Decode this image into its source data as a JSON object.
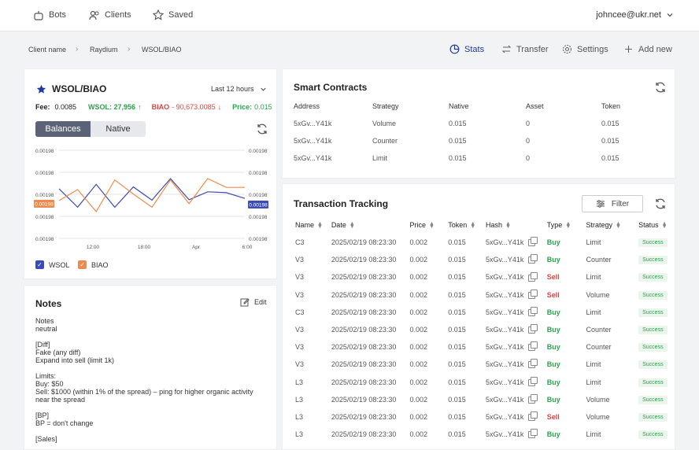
{
  "nav": [
    {
      "label": "Bots",
      "icon": "bot-icon"
    },
    {
      "label": "Clients",
      "icon": "users-icon"
    },
    {
      "label": "Saved",
      "icon": "star-icon"
    }
  ],
  "user": {
    "email": "johncee@ukr.net"
  },
  "breadcrumb": [
    "Client name",
    "Raydium",
    "WSOL/BIAO"
  ],
  "tabs": [
    {
      "label": "Stats",
      "active": true
    },
    {
      "label": "Transfer",
      "active": false
    },
    {
      "label": "Settings",
      "active": false
    },
    {
      "label": "Add new",
      "active": false
    }
  ],
  "pair": {
    "title": "WSOL/BIAO",
    "range": "Last 12 hours",
    "fee_label": "Fee:",
    "fee": "0.0085",
    "wsol": "WSOL: 27,956",
    "biao": "BIAO",
    "biao_value": "- 90,673.0085",
    "price_label": "Price:",
    "price": "0.015",
    "seg": [
      "Balances",
      "Native"
    ]
  },
  "chart_data": {
    "type": "line",
    "x_ticks": [
      "12:00",
      "18:00",
      "Apr",
      "6:00"
    ],
    "left_ticks": [
      "0.00198",
      "0.00198",
      "0.00198",
      "0.00198",
      "0.00198",
      "0.00198"
    ],
    "right_ticks": [
      "0.00198",
      "0.00198",
      "0.00198",
      "0.00198",
      "0.00198",
      "0.00198"
    ],
    "left_marker": "0.00198",
    "right_marker": "0.00198",
    "series": [
      {
        "name": "WSOL",
        "color": "#3b4bb8",
        "values": [
          0.52,
          0.1,
          0.62,
          0.1,
          0.56,
          0.26,
          0.75,
          0.27,
          0.45,
          0.43,
          0.3
        ]
      },
      {
        "name": "BIAO",
        "color": "#f08a4b",
        "values": [
          0.25,
          0.5,
          0.0,
          0.72,
          0.4,
          0.1,
          0.72,
          0.18,
          0.75,
          0.55,
          0.55
        ]
      }
    ]
  },
  "notes": {
    "title": "Notes",
    "edit": "Edit",
    "body": "Notes\nneutral\n\n[Diff]\nFake (any diff)\nExpand into sell (limit 1k)\n\nLimits:\nBuy: $50\nSell: $1000 (within 1% of the spread) – ping for higher organic activity near the spread\n\n[BP]\nBP = don't change\n\n[Sales]"
  },
  "contracts": {
    "title": "Smart Contracts",
    "headers": [
      "Address",
      "Strategy",
      "Native",
      "Asset",
      "Token"
    ],
    "rows": [
      [
        "5xGv...Y41k",
        "Volume",
        "0.015",
        "0",
        "0.015"
      ],
      [
        "5xGv...Y41k",
        "Counter",
        "0.015",
        "0",
        "0.015"
      ],
      [
        "5xGv...Y41k",
        "Limit",
        "0.015",
        "0",
        "0.015"
      ]
    ]
  },
  "tracking": {
    "title": "Transaction Tracking",
    "filter": "Filter",
    "headers": [
      "Name",
      "Date",
      "Price",
      "Token",
      "Hash",
      "Type",
      "Strategy",
      "Status"
    ],
    "rows": [
      [
        "C3",
        "2025/02/19 08:23:30",
        "0.002",
        "0.015",
        "5xGv...Y41k",
        "Buy",
        "Limit",
        "Success"
      ],
      [
        "V3",
        "2025/02/19 08:23:30",
        "0.002",
        "0.015",
        "5xGv...Y41k",
        "Buy",
        "Counter",
        "Success"
      ],
      [
        "V3",
        "2025/02/19 08:23:30",
        "0.002",
        "0.015",
        "5xGv...Y41k",
        "Sell",
        "Limit",
        "Success"
      ],
      [
        "V3",
        "2025/02/19 08:23:30",
        "0.002",
        "0.015",
        "5xGv...Y41k",
        "Sell",
        "Volume",
        "Success"
      ],
      [
        "C3",
        "2025/02/19 08:23:30",
        "0.002",
        "0.015",
        "5xGv...Y41k",
        "Buy",
        "Limit",
        "Success"
      ],
      [
        "V3",
        "2025/02/19 08:23:30",
        "0.002",
        "0.015",
        "5xGv...Y41k",
        "Buy",
        "Counter",
        "Success"
      ],
      [
        "V3",
        "2025/02/19 08:23:30",
        "0.002",
        "0.015",
        "5xGv...Y41k",
        "Buy",
        "Counter",
        "Success"
      ],
      [
        "V3",
        "2025/02/19 08:23:30",
        "0.002",
        "0.015",
        "5xGv...Y41k",
        "Buy",
        "Limit",
        "Success"
      ],
      [
        "L3",
        "2025/02/19 08:23:30",
        "0.002",
        "0.015",
        "5xGv...Y41k",
        "Buy",
        "Limit",
        "Success"
      ],
      [
        "L3",
        "2025/02/19 08:23:30",
        "0.002",
        "0.015",
        "5xGv...Y41k",
        "Buy",
        "Volume",
        "Success"
      ],
      [
        "L3",
        "2025/02/19 08:23:30",
        "0.002",
        "0.015",
        "5xGv...Y41k",
        "Sell",
        "Volume",
        "Success"
      ],
      [
        "L3",
        "2025/02/19 08:23:30",
        "0.002",
        "0.015",
        "5xGv...Y41k",
        "Buy",
        "Limit",
        "Success"
      ]
    ]
  }
}
